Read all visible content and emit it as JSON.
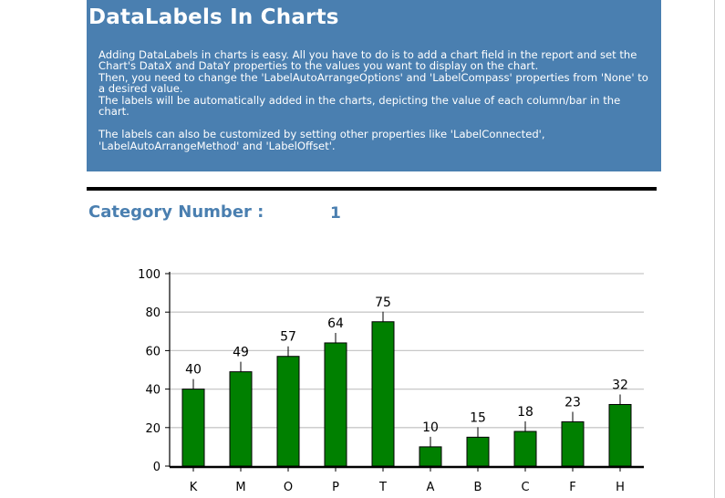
{
  "header": {
    "title": "DataLabels In Charts",
    "paragraphs": [
      "Adding DataLabels in charts is easy. All you have to do is to add a chart field in the report and set the Chart's DataX and DataY properties to the values you want to display on the chart.",
      "Then, you need to change the 'LabelAutoArrangeOptions' and 'LabelCompass' properties from 'None' to a desired value.",
      "The labels will be automatically added in the charts, depicting the value of each column/bar in the chart.",
      "The labels can also be customized by setting other properties like 'LabelConnected', 'LabelAutoArrangeMethod' and 'LabelOffset'."
    ]
  },
  "category": {
    "label": "Category Number :",
    "value": "1"
  },
  "colors": {
    "header_bg": "#4a7fb0",
    "bar_fill": "#008000",
    "accent_text": "#4a7fb0"
  },
  "chart_data": {
    "type": "bar",
    "categories": [
      "K",
      "M",
      "O",
      "P",
      "T",
      "A",
      "B",
      "C",
      "F",
      "H"
    ],
    "values": [
      40,
      49,
      57,
      64,
      75,
      10,
      15,
      18,
      23,
      32
    ],
    "data_labels": [
      "40",
      "49",
      "57",
      "64",
      "75",
      "10",
      "15",
      "18",
      "23",
      "32"
    ],
    "y_ticks": [
      "0",
      "20",
      "40",
      "60",
      "80",
      "100"
    ],
    "ylim": [
      0,
      100
    ],
    "grid": true,
    "title": "",
    "xlabel": "",
    "ylabel": ""
  }
}
